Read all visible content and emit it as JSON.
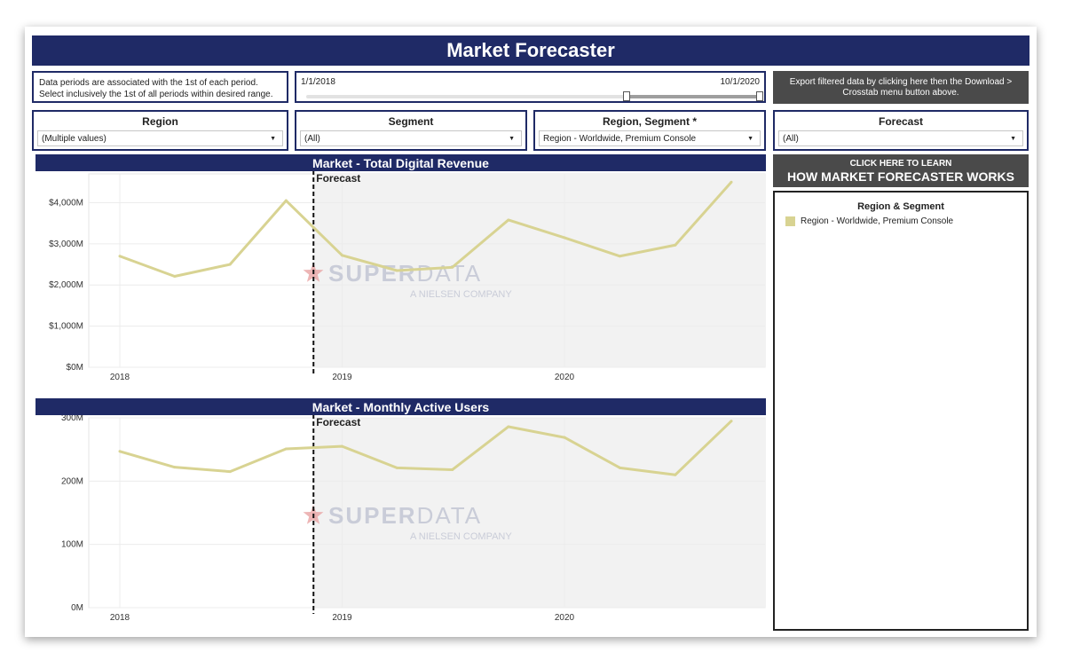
{
  "app": {
    "title": "Market Forecaster"
  },
  "period_note": "Data periods are associated with the 1st of each period. Select inclusively the 1st of all periods within desired range.",
  "date_range": {
    "start_label": "1/1/2018",
    "end_label": "10/1/2020"
  },
  "export_button": {
    "label": "Export filtered data by clicking here then the Download > Crosstab menu button above."
  },
  "filters": [
    {
      "label": "Region",
      "value": "(Multiple values)"
    },
    {
      "label": "Segment",
      "value": "(All)"
    },
    {
      "label": "Region, Segment *",
      "value": "Region - Worldwide, Premium Console"
    },
    {
      "label": "Forecast",
      "value": "(All)"
    }
  ],
  "learn_button": {
    "line1": "CLICK HERE TO LEARN",
    "line2": "HOW MARKET FORECASTER WORKS"
  },
  "legend": {
    "title": "Region & Segment",
    "items": [
      {
        "label": "Region - Worldwide, Premium Console",
        "color": "#d8d392"
      }
    ]
  },
  "watermark": {
    "brand_a": "SUPER",
    "brand_b": "DATA",
    "sub": "A NIELSEN COMPANY"
  },
  "colors": {
    "navy": "#1f2a66",
    "line": "#d8d392",
    "forecast_bg": "#f2f2f2",
    "dark_button": "#4a4a4a",
    "watermark_star": "#e8a3a3"
  },
  "chart_data": [
    {
      "type": "line",
      "title": "Market - Total Digital Revenue",
      "x": [
        "2018-01-01",
        "2018-04-01",
        "2018-07-01",
        "2018-10-01",
        "2019-01-01",
        "2019-04-01",
        "2019-07-01",
        "2019-10-01",
        "2020-01-01",
        "2020-04-01",
        "2020-07-01",
        "2020-10-01"
      ],
      "x_ticks": [
        "2018",
        "2019",
        "2020"
      ],
      "y_ticks": [
        "$0M",
        "$1,000M",
        "$2,000M",
        "$3,000M",
        "$4,000M"
      ],
      "ylim": [
        0,
        4700
      ],
      "forecast_label": "Forecast",
      "forecast_start": "2018-11-15",
      "series": [
        {
          "name": "Region - Worldwide, Premium Console",
          "values": [
            2700,
            2210,
            2500,
            4050,
            2720,
            2350,
            2430,
            3580,
            3150,
            2700,
            2970,
            4500
          ]
        }
      ]
    },
    {
      "type": "line",
      "title": "Market - Monthly Active Users",
      "x": [
        "2018-01-01",
        "2018-04-01",
        "2018-07-01",
        "2018-10-01",
        "2019-01-01",
        "2019-04-01",
        "2019-07-01",
        "2019-10-01",
        "2020-01-01",
        "2020-04-01",
        "2020-07-01",
        "2020-10-01"
      ],
      "x_ticks": [
        "2018",
        "2019",
        "2020"
      ],
      "y_ticks": [
        "0M",
        "100M",
        "200M",
        "300M"
      ],
      "ylim": [
        0,
        300
      ],
      "forecast_label": "Forecast",
      "forecast_start": "2018-11-15",
      "series": [
        {
          "name": "Region - Worldwide, Premium Console",
          "values": [
            247,
            222,
            215,
            251,
            255,
            221,
            218,
            286,
            269,
            221,
            210,
            295
          ]
        }
      ]
    }
  ]
}
